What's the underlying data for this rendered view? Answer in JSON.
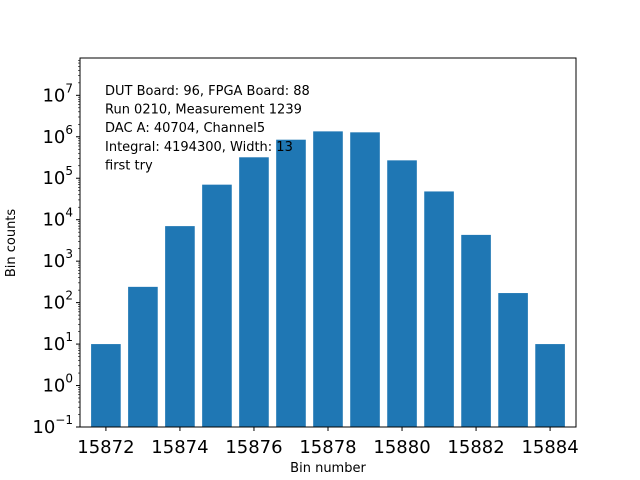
{
  "chart_data": {
    "type": "bar",
    "x": [
      15872,
      15873,
      15874,
      15875,
      15876,
      15877,
      15878,
      15879,
      15880,
      15881,
      15882,
      15883,
      15884
    ],
    "values": [
      10,
      240,
      7000,
      70000,
      320000,
      850000,
      1350000,
      1280000,
      270000,
      48000,
      4300,
      170,
      10
    ],
    "color": "#1f77b4",
    "xlabel": "Bin number",
    "ylabel": "Bin counts",
    "yscale": "log",
    "ylim_exponents": [
      -1,
      7.9
    ],
    "xlim": [
      15871.3,
      15884.7
    ],
    "xticks": [
      15872,
      15874,
      15876,
      15878,
      15880,
      15882,
      15884
    ],
    "xtick_labels": [
      "15872",
      "15874",
      "15876",
      "15878",
      "15880",
      "15882",
      "15884"
    ],
    "ytick_exponents": [
      -1,
      0,
      1,
      2,
      3,
      4,
      5,
      6,
      7
    ],
    "ytick_labels": [
      {
        "base": "10",
        "exp": "−1"
      },
      {
        "base": "10",
        "exp": "0"
      },
      {
        "base": "10",
        "exp": "1"
      },
      {
        "base": "10",
        "exp": "2"
      },
      {
        "base": "10",
        "exp": "3"
      },
      {
        "base": "10",
        "exp": "4"
      },
      {
        "base": "10",
        "exp": "5"
      },
      {
        "base": "10",
        "exp": "6"
      },
      {
        "base": "10",
        "exp": "7"
      }
    ],
    "annotation": [
      "DUT Board: 96, FPGA Board: 88",
      "Run 0210, Measurement 1239",
      "DAC A: 40704, Channel5",
      "Integral: 4194300, Width: 13",
      "first try"
    ]
  }
}
